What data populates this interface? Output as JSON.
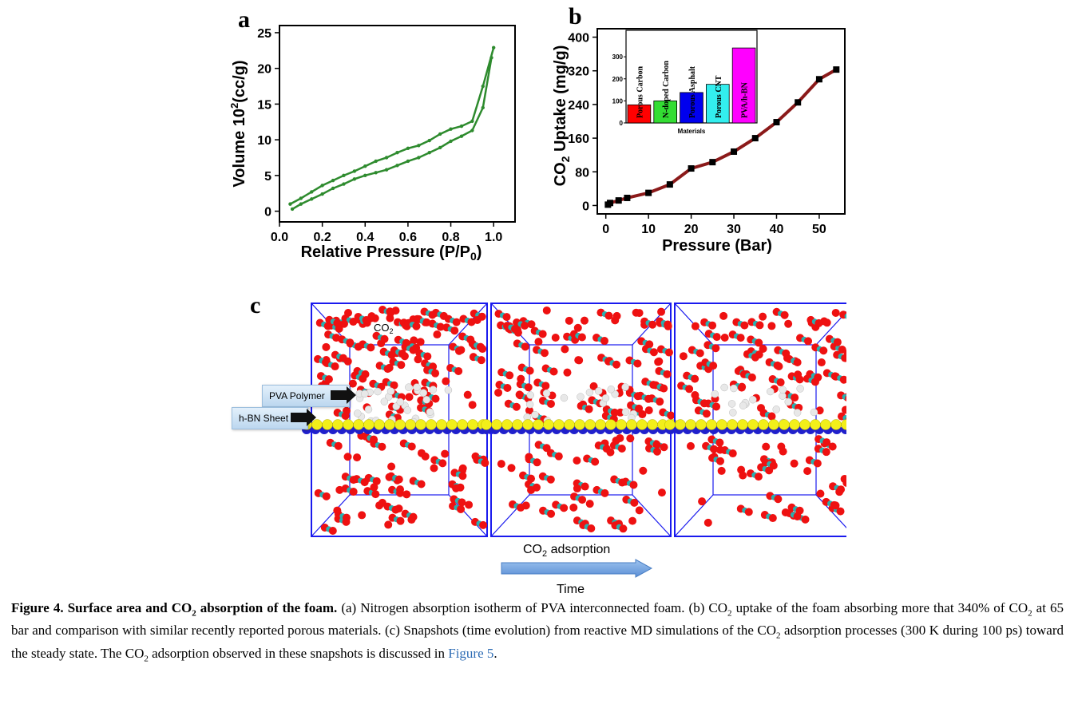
{
  "panels": {
    "a": "a",
    "b": "b",
    "c": "c"
  },
  "chart_data": [
    {
      "panel": "a",
      "type": "line",
      "title": "",
      "xlabel": "Relative Pressure (P/P0)",
      "ylabel": "Volume 10^2(cc/g)",
      "xlim": [
        0.0,
        1.1
      ],
      "ylim": [
        -1.5,
        26
      ],
      "x_ticks": [
        "0.0",
        "0.2",
        "0.4",
        "0.6",
        "0.8",
        "1.0"
      ],
      "y_ticks": [
        "0",
        "5",
        "10",
        "15",
        "20",
        "25"
      ],
      "color": "#2e8b2e",
      "series": [
        {
          "x": [
            0.05,
            0.1,
            0.15,
            0.2,
            0.25,
            0.3,
            0.35,
            0.4,
            0.45,
            0.5,
            0.55,
            0.6,
            0.65,
            0.7,
            0.75,
            0.8,
            0.85,
            0.9,
            0.95,
            1.0
          ],
          "values": [
            1.0,
            1.8,
            2.7,
            3.6,
            4.3,
            5.0,
            5.6,
            6.3,
            7.0,
            7.5,
            8.2,
            8.8,
            9.2,
            9.9,
            10.8,
            11.5,
            11.9,
            12.6,
            17.5,
            22.9
          ]
        },
        {
          "x": [
            0.06,
            0.1,
            0.15,
            0.2,
            0.25,
            0.3,
            0.35,
            0.4,
            0.45,
            0.5,
            0.55,
            0.6,
            0.65,
            0.7,
            0.75,
            0.8,
            0.85,
            0.9,
            0.95,
            0.99
          ],
          "values": [
            0.3,
            1.0,
            1.7,
            2.4,
            3.2,
            3.8,
            4.5,
            5.0,
            5.4,
            5.8,
            6.4,
            7.0,
            7.5,
            8.2,
            8.9,
            9.8,
            10.5,
            11.3,
            14.5,
            21.5
          ]
        }
      ]
    },
    {
      "panel": "b",
      "type": "line",
      "title": "",
      "xlabel": "Pressure (Bar)",
      "ylabel": "CO2 Uptake (mg/g)",
      "xlim": [
        -2,
        56
      ],
      "ylim": [
        -20,
        420
      ],
      "x_ticks": [
        "0",
        "10",
        "20",
        "30",
        "40",
        "50"
      ],
      "y_ticks": [
        "0",
        "80",
        "160",
        "240",
        "320",
        "400"
      ],
      "line_color": "#8b1a1a",
      "marker_color": "#000000",
      "x": [
        0.5,
        1,
        3,
        5,
        10,
        15,
        20,
        25,
        30,
        35,
        40,
        45,
        50,
        54
      ],
      "values": [
        2,
        6,
        12,
        18,
        30,
        50,
        88,
        103,
        128,
        160,
        198,
        245,
        300,
        323
      ]
    },
    {
      "panel": "b-inset",
      "type": "bar",
      "xlabel": "Materials",
      "ylim": [
        0,
        420
      ],
      "y_ticks": [
        "0",
        "100",
        "200",
        "300"
      ],
      "categories": [
        "Porous Carbon",
        "N-doped Carbon",
        "Porous Asphalt",
        "Porous CNT",
        "PVA/h-BN"
      ],
      "colors": [
        "#ff0000",
        "#33dd33",
        "#0000ee",
        "#33eeee",
        "#ff00ff"
      ],
      "values": [
        82,
        100,
        138,
        175,
        340
      ]
    }
  ],
  "panel_c": {
    "co2_label": "CO2",
    "pva_label": "PVA Polymer",
    "hbn_label": "h-BN Sheet",
    "adsorption_label": "CO2 adsorption",
    "time_label": "Time"
  },
  "caption": {
    "lead": "Figure 4. Surface area and CO2 absorption of the foam.",
    "body": " (a) Nitrogen absorption isotherm of PVA interconnected foam. (b) CO2 uptake of the foam absorbing more that 340% of CO2 at 65 bar and comparison with similar recently reported porous materials. (c) Snapshots (time evolution) from reactive MD simulations of the CO2 adsorption processes (300 K during 100 ps) toward the steady state. The CO2 adsorption observed in these snapshots is discussed in ",
    "link": "Figure 5",
    "tail": "."
  }
}
